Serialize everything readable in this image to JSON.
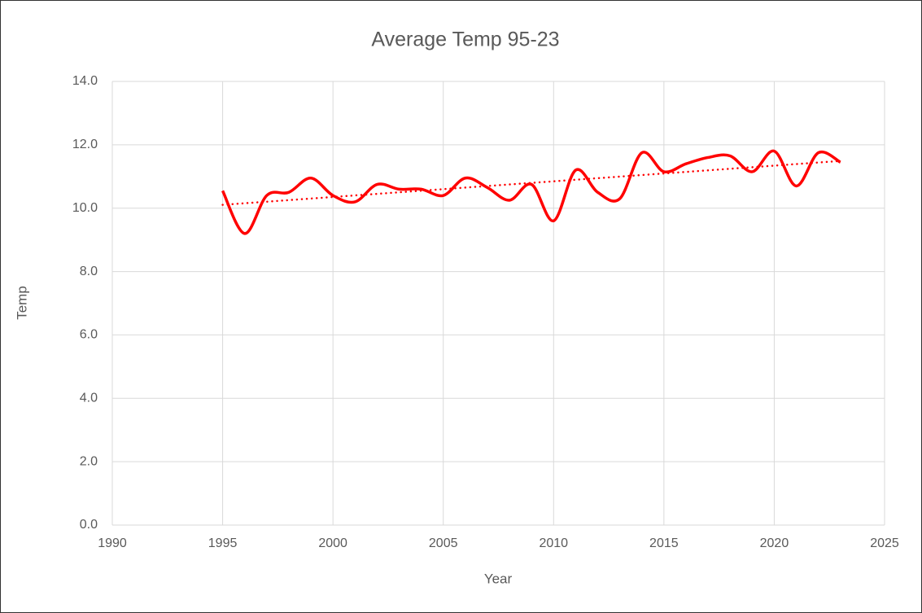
{
  "chart_data": {
    "type": "line",
    "title": "Average Temp 95-23",
    "xlabel": "Year",
    "ylabel": "Temp",
    "x": [
      1995,
      1996,
      1997,
      1998,
      1999,
      2000,
      2001,
      2002,
      2003,
      2004,
      2005,
      2006,
      2007,
      2008,
      2009,
      2010,
      2011,
      2012,
      2013,
      2014,
      2015,
      2016,
      2017,
      2018,
      2019,
      2020,
      2021,
      2022,
      2023
    ],
    "series": [
      {
        "color": "#ff0000",
        "smooth": true,
        "trendline": "linear",
        "values": [
          10.55,
          9.2,
          10.4,
          10.5,
          10.95,
          10.4,
          10.2,
          10.75,
          10.6,
          10.6,
          10.4,
          10.95,
          10.65,
          10.25,
          10.75,
          9.6,
          11.2,
          10.5,
          10.3,
          11.75,
          11.15,
          11.4,
          11.6,
          11.65,
          11.15,
          11.8,
          10.7,
          11.75,
          11.45
        ]
      }
    ],
    "xlim": [
      1990,
      2025
    ],
    "xticks": [
      1990,
      1995,
      2000,
      2005,
      2010,
      2015,
      2020,
      2025
    ],
    "ylim": [
      0,
      14
    ],
    "yticks": [
      {
        "value": 0,
        "label": "0.0"
      },
      {
        "value": 2,
        "label": "2.0"
      },
      {
        "value": 4,
        "label": "4.0"
      },
      {
        "value": 6,
        "label": "6.0"
      },
      {
        "value": 8,
        "label": "8.0"
      },
      {
        "value": 10,
        "label": "10.0"
      },
      {
        "value": 12,
        "label": "12.0"
      },
      {
        "value": 14,
        "label": "14.0"
      }
    ],
    "grid": true
  }
}
